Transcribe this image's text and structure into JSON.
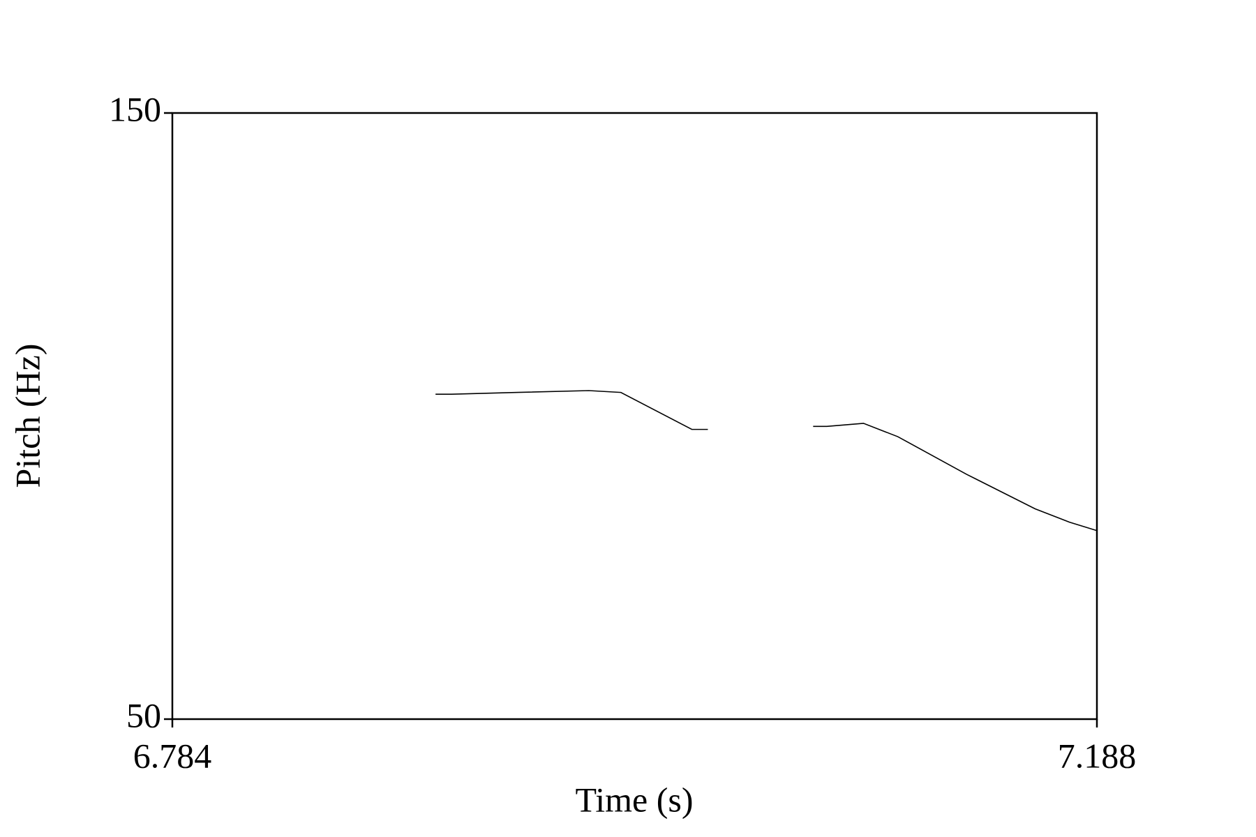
{
  "chart_data": {
    "type": "line",
    "xlabel": "Time (s)",
    "ylabel": "Pitch (Hz)",
    "x": [
      6.899,
      6.906,
      6.935,
      6.966,
      6.98,
      7.011,
      7.018,
      null,
      7.064,
      7.07,
      7.086,
      7.101,
      7.131,
      7.161,
      7.176,
      7.188
    ],
    "series": [
      {
        "color": "#000000",
        "values": [
          103.6,
          103.6,
          103.9,
          104.2,
          103.9,
          97.8,
          97.8,
          null,
          98.3,
          98.3,
          98.8,
          96.6,
          90.4,
          84.7,
          82.5,
          81.1
        ]
      }
    ],
    "xlim": [
      6.784,
      7.188
    ],
    "ylim": [
      50,
      150
    ],
    "xticks": [
      6.784,
      7.188
    ],
    "yticks": [
      50,
      150
    ]
  }
}
